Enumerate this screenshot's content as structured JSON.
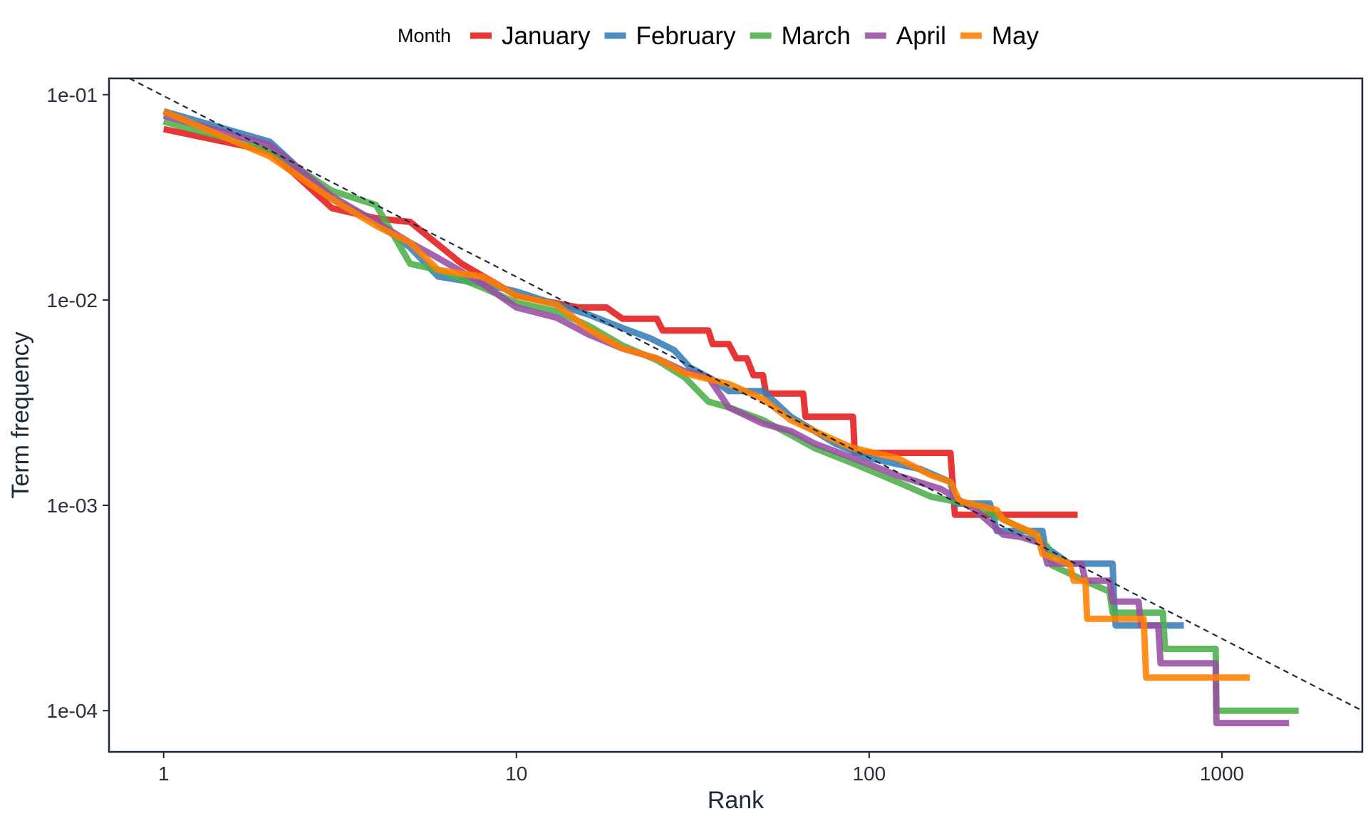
{
  "chart_data": {
    "type": "line",
    "xlabel": "Rank",
    "ylabel": "Term frequency",
    "x_scale": "log",
    "y_scale": "log",
    "xlim": [
      0.7,
      2500
    ],
    "ylim": [
      6.3e-05,
      0.12
    ],
    "x_ticks": [
      1,
      10,
      100,
      1000
    ],
    "x_tick_labels": [
      "1",
      "10",
      "100",
      "1000"
    ],
    "y_ticks": [
      0.1,
      0.01,
      0.001,
      0.0001
    ],
    "y_tick_labels": [
      "1e-01",
      "1e-02",
      "1e-03",
      "1e-04"
    ],
    "grid": false,
    "legend": {
      "title": "Month",
      "position": "top"
    },
    "reference_line": {
      "style": "dashed",
      "color": "#1e2a3a",
      "points": [
        [
          0.8,
          0.12
        ],
        [
          2500,
          0.0001
        ]
      ]
    },
    "series": [
      {
        "name": "January",
        "color": "#e41a1c",
        "points": [
          [
            1,
            0.068
          ],
          [
            2,
            0.053
          ],
          [
            3,
            0.028
          ],
          [
            4,
            0.025
          ],
          [
            5,
            0.024
          ],
          [
            7,
            0.015
          ],
          [
            10,
            0.0105
          ],
          [
            15,
            0.0092
          ],
          [
            18,
            0.0092
          ],
          [
            20,
            0.0081
          ],
          [
            25,
            0.0081
          ],
          [
            26,
            0.0071
          ],
          [
            35,
            0.0071
          ],
          [
            36,
            0.0061
          ],
          [
            40,
            0.0061
          ],
          [
            42,
            0.0052
          ],
          [
            45,
            0.0052
          ],
          [
            47,
            0.0043
          ],
          [
            50,
            0.0043
          ],
          [
            51,
            0.0035
          ],
          [
            65,
            0.0035
          ],
          [
            66,
            0.0027
          ],
          [
            90,
            0.0027
          ],
          [
            91,
            0.0018
          ],
          [
            170,
            0.0018
          ],
          [
            175,
            0.0009
          ],
          [
            390,
            0.0009
          ]
        ]
      },
      {
        "name": "February",
        "color": "#377eb8",
        "points": [
          [
            1,
            0.083
          ],
          [
            2,
            0.059
          ],
          [
            3,
            0.031
          ],
          [
            4,
            0.024
          ],
          [
            5,
            0.018
          ],
          [
            6,
            0.013
          ],
          [
            8,
            0.012
          ],
          [
            10,
            0.011
          ],
          [
            13,
            0.0095
          ],
          [
            16,
            0.0085
          ],
          [
            20,
            0.0073
          ],
          [
            24,
            0.0065
          ],
          [
            28,
            0.0057
          ],
          [
            31,
            0.0047
          ],
          [
            36,
            0.0041
          ],
          [
            40,
            0.0036
          ],
          [
            50,
            0.0036
          ],
          [
            55,
            0.0031
          ],
          [
            60,
            0.0027
          ],
          [
            70,
            0.0023
          ],
          [
            80,
            0.002
          ],
          [
            100,
            0.0017
          ],
          [
            140,
            0.0015
          ],
          [
            170,
            0.0013
          ],
          [
            175,
            0.00102
          ],
          [
            220,
            0.00102
          ],
          [
            225,
            0.00088
          ],
          [
            230,
            0.00075
          ],
          [
            310,
            0.00075
          ],
          [
            315,
            0.00063
          ],
          [
            370,
            0.00052
          ],
          [
            490,
            0.00052
          ],
          [
            495,
            0.00033
          ],
          [
            500,
            0.00026
          ],
          [
            780,
            0.00026
          ]
        ]
      },
      {
        "name": "March",
        "color": "#4daf4a",
        "points": [
          [
            1,
            0.074
          ],
          [
            2,
            0.054
          ],
          [
            3,
            0.034
          ],
          [
            4,
            0.029
          ],
          [
            5,
            0.015
          ],
          [
            6,
            0.014
          ],
          [
            8,
            0.0115
          ],
          [
            10,
            0.0097
          ],
          [
            13,
            0.0088
          ],
          [
            16,
            0.0075
          ],
          [
            20,
            0.006
          ],
          [
            25,
            0.0051
          ],
          [
            30,
            0.0042
          ],
          [
            35,
            0.0032
          ],
          [
            40,
            0.003
          ],
          [
            50,
            0.0026
          ],
          [
            60,
            0.0022
          ],
          [
            70,
            0.0019
          ],
          [
            90,
            0.0016
          ],
          [
            120,
            0.0013
          ],
          [
            150,
            0.0011
          ],
          [
            200,
            0.001
          ],
          [
            280,
            0.00075
          ],
          [
            320,
            0.00063
          ],
          [
            330,
            0.00051
          ],
          [
            420,
            0.00042
          ],
          [
            480,
            0.00038
          ],
          [
            490,
            0.0003
          ],
          [
            680,
            0.0003
          ],
          [
            690,
            0.0002
          ],
          [
            960,
            0.0002
          ],
          [
            965,
            0.0001
          ],
          [
            1650,
            0.0001
          ]
        ]
      },
      {
        "name": "April",
        "color": "#984ea3",
        "points": [
          [
            1,
            0.079
          ],
          [
            2,
            0.057
          ],
          [
            3,
            0.032
          ],
          [
            4,
            0.024
          ],
          [
            5,
            0.019
          ],
          [
            6,
            0.016
          ],
          [
            8,
            0.012
          ],
          [
            10,
            0.0092
          ],
          [
            13,
            0.0082
          ],
          [
            16,
            0.0068
          ],
          [
            20,
            0.0058
          ],
          [
            25,
            0.0052
          ],
          [
            30,
            0.0045
          ],
          [
            35,
            0.0042
          ],
          [
            40,
            0.003
          ],
          [
            50,
            0.0025
          ],
          [
            60,
            0.0023
          ],
          [
            70,
            0.002
          ],
          [
            90,
            0.0017
          ],
          [
            120,
            0.0014
          ],
          [
            160,
            0.0012
          ],
          [
            200,
            0.00095
          ],
          [
            240,
            0.00072
          ],
          [
            270,
            0.0007
          ],
          [
            310,
            0.00065
          ],
          [
            320,
            0.00052
          ],
          [
            400,
            0.00052
          ],
          [
            410,
            0.00043
          ],
          [
            480,
            0.00043
          ],
          [
            490,
            0.00034
          ],
          [
            580,
            0.00034
          ],
          [
            590,
            0.00026
          ],
          [
            660,
            0.00026
          ],
          [
            670,
            0.00017
          ],
          [
            960,
            0.00017
          ],
          [
            965,
            8.7e-05
          ],
          [
            1550,
            8.7e-05
          ]
        ]
      },
      {
        "name": "May",
        "color": "#ff7f00",
        "points": [
          [
            1,
            0.083
          ],
          [
            2,
            0.05
          ],
          [
            3,
            0.031
          ],
          [
            4,
            0.023
          ],
          [
            5,
            0.019
          ],
          [
            6,
            0.014
          ],
          [
            8,
            0.013
          ],
          [
            10,
            0.0105
          ],
          [
            13,
            0.0095
          ],
          [
            16,
            0.0072
          ],
          [
            20,
            0.0058
          ],
          [
            25,
            0.0052
          ],
          [
            30,
            0.0044
          ],
          [
            40,
            0.0039
          ],
          [
            50,
            0.0033
          ],
          [
            60,
            0.0026
          ],
          [
            70,
            0.0023
          ],
          [
            90,
            0.0019
          ],
          [
            120,
            0.0017
          ],
          [
            150,
            0.0014
          ],
          [
            170,
            0.0013
          ],
          [
            180,
            0.00105
          ],
          [
            230,
            0.00095
          ],
          [
            240,
            0.00085
          ],
          [
            300,
            0.00072
          ],
          [
            310,
            0.00058
          ],
          [
            370,
            0.00052
          ],
          [
            380,
            0.00043
          ],
          [
            410,
            0.00043
          ],
          [
            415,
            0.00028
          ],
          [
            600,
            0.00028
          ],
          [
            610,
            0.000145
          ],
          [
            1200,
            0.000145
          ]
        ]
      }
    ]
  }
}
